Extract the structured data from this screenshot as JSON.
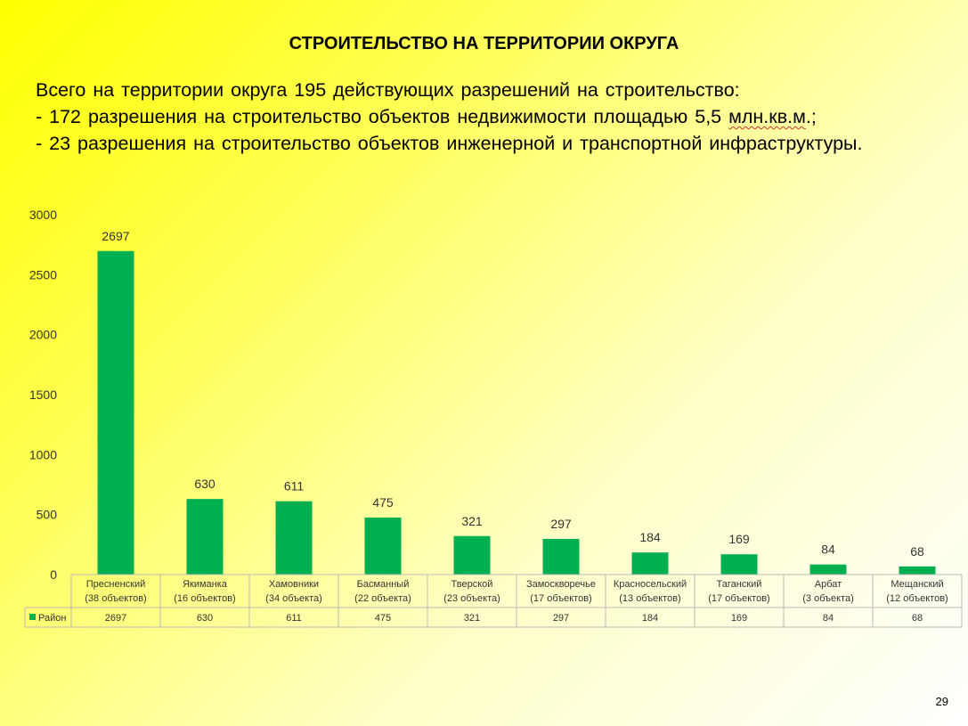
{
  "slide": {
    "title": "СТРОИТЕЛЬСТВО НА ТЕРРИТОРИИ ОКРУГА",
    "line1": "Всего на территории округа 195 действующих разрешений на строительство:",
    "line2_pre": "- 172 разрешения на строительство объектов недвижимости площадью 5,5 ",
    "line2_mid": "млн.кв.м",
    "line2_post": ".;",
    "line3": "- 23 разрешения на строительство объектов инженерной и транспортной инфраструктуры.",
    "page_number": "29"
  },
  "chart_data": {
    "type": "bar",
    "categories": [
      [
        "Пресненский",
        "(38 объектов)"
      ],
      [
        "Якиманка",
        "(16 объектов)"
      ],
      [
        "Хамовники",
        "(34 объекта)"
      ],
      [
        "Басманный",
        "(22 объекта)"
      ],
      [
        "Тверской",
        "(23 объекта)"
      ],
      [
        "Замоскворечье",
        "(17 объектов)"
      ],
      [
        "Красносельский",
        "(13 объектов)"
      ],
      [
        "Таганский",
        "(17 объектов)"
      ],
      [
        "Арбат",
        "(3 объекта)"
      ],
      [
        "Мещанский",
        "(12 объектов)"
      ]
    ],
    "series": [
      {
        "name": "Район",
        "values": [
          2697,
          630,
          611,
          475,
          321,
          297,
          184,
          169,
          84,
          68
        ]
      }
    ],
    "ylim": [
      0,
      3000
    ],
    "yticks": [
      0,
      500,
      1000,
      1500,
      2000,
      2500,
      3000
    ],
    "bar_color": "#00b050",
    "grid": false,
    "legend": "data-table"
  }
}
